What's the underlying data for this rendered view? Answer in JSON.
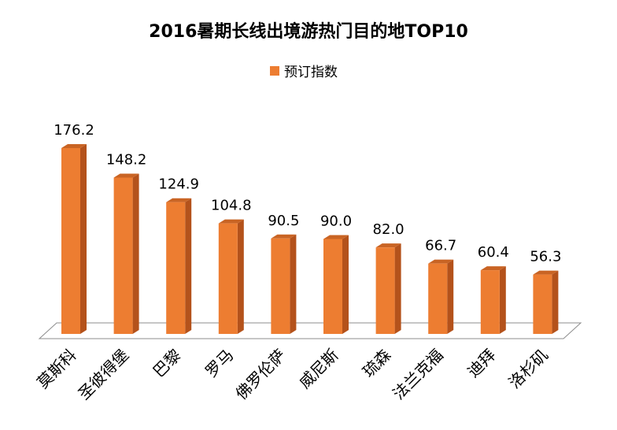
{
  "chart_data": {
    "type": "bar",
    "title": "2016暑期长线出境游热门目的地TOP10",
    "legend": [
      "预订指数"
    ],
    "legend_position": "top-center",
    "categories": [
      "莫斯科",
      "圣彼得堡",
      "巴黎",
      "罗马",
      "佛罗伦萨",
      "威尼斯",
      "琉森",
      "法兰克福",
      "迪拜",
      "洛杉矶"
    ],
    "series": [
      {
        "name": "预订指数",
        "values": [
          176.2,
          148.2,
          124.9,
          104.8,
          90.5,
          90.0,
          82.0,
          66.7,
          60.4,
          56.3
        ]
      }
    ],
    "value_labels": [
      "176.2",
      "148.2",
      "124.9",
      "104.8",
      "90.5",
      "90.0",
      "82.0",
      "66.7",
      "60.4",
      "56.3"
    ],
    "ylim": [
      0,
      180
    ],
    "grid": false,
    "colors": {
      "bar_front": "#ED7D31",
      "bar_side": "#B4521B",
      "bar_top": "#C96424",
      "floor": "#FFFFFF",
      "floor_stroke": "#8C8C8C"
    }
  }
}
